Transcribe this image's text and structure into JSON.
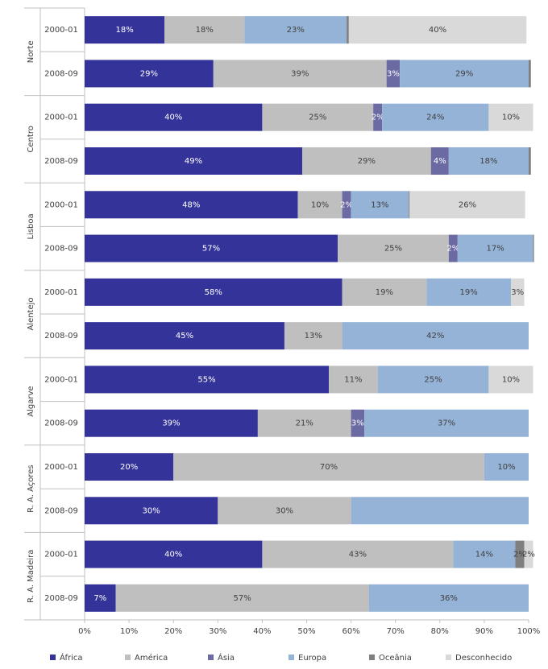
{
  "chart_data": {
    "type": "stacked-bar-horizontal",
    "groups": [
      "Norte",
      "Centro",
      "Lisboa",
      "Alentejo",
      "Algarve",
      "R. A. Açores",
      "R. A. Madeira"
    ],
    "categories": [
      "2000-01",
      "2008-09",
      "2000-01",
      "2008-09",
      "2000-01",
      "2008-09",
      "2000-01",
      "2008-09",
      "2000-01",
      "2008-09",
      "2000-01",
      "2008-09",
      "2000-01",
      "2008-09"
    ],
    "series": [
      {
        "name": "África",
        "color": "#33339a",
        "label_color": "#ffffff",
        "values": [
          18,
          29,
          40,
          49,
          48,
          57,
          58,
          45,
          55,
          39,
          20,
          30,
          40,
          7
        ],
        "value_labels": [
          "18%",
          "29%",
          "40%",
          "49%",
          "48%",
          "57%",
          "58%",
          "45%",
          "55%",
          "39%",
          "20%",
          "30%",
          "40%",
          "7%"
        ]
      },
      {
        "name": "América",
        "color": "#bfbfbf",
        "label_color": "#404040",
        "values": [
          18,
          39,
          25,
          29,
          10,
          25,
          19,
          13,
          11,
          21,
          70,
          30,
          43,
          57
        ],
        "value_labels": [
          "18%",
          "39%",
          "25%",
          "29%",
          "10%",
          "25%",
          "19%",
          "13%",
          "11%",
          "21%",
          "70%",
          "30%",
          "43%",
          "57%"
        ]
      },
      {
        "name": "Ásia",
        "color": "#6b6aa3",
        "label_color": "#ffffff",
        "values": [
          0,
          3,
          2,
          4,
          2,
          2,
          0,
          0,
          0,
          3,
          0,
          0,
          0,
          0
        ],
        "value_labels": [
          null,
          "3%",
          "2%",
          "4%",
          "2%",
          "2%",
          null,
          null,
          null,
          "3%",
          null,
          null,
          null,
          null
        ]
      },
      {
        "name": "Europa",
        "color": "#95b3d7",
        "label_color": "#404040",
        "values": [
          23,
          29,
          24,
          18,
          13,
          17,
          19,
          42,
          25,
          37,
          10,
          40,
          14,
          36
        ],
        "value_labels": [
          "23%",
          "29%",
          "24%",
          "18%",
          "13%",
          "17%",
          "19%",
          "42%",
          "25%",
          "37%",
          "10%",
          null,
          "14%",
          "36%"
        ]
      },
      {
        "name": "Oceânia",
        "color": "#7f7f7f",
        "label_color": "#404040",
        "values": [
          0.5,
          0.5,
          0,
          0.5,
          0.2,
          0.2,
          0,
          0,
          0,
          0,
          0,
          0,
          2,
          0
        ],
        "value_labels": [
          null,
          null,
          null,
          null,
          null,
          null,
          null,
          null,
          null,
          null,
          null,
          null,
          "2%",
          null
        ]
      },
      {
        "name": "Desconhecido",
        "color": "#d9d9d9",
        "label_color": "#404040",
        "values": [
          40,
          0,
          10,
          0,
          26,
          0,
          3,
          0,
          10,
          0,
          0,
          0,
          2,
          0
        ],
        "value_labels": [
          "40%",
          null,
          "10%",
          null,
          "26%",
          null,
          "3%",
          null,
          "10%",
          null,
          null,
          null,
          "2%",
          null
        ]
      }
    ],
    "xlim": [
      0,
      100
    ],
    "xticks": [
      {
        "value": 0,
        "label": "0%"
      },
      {
        "value": 10,
        "label": "10%"
      },
      {
        "value": 20,
        "label": "20%"
      },
      {
        "value": 30,
        "label": "30%"
      },
      {
        "value": 40,
        "label": "40%"
      },
      {
        "value": 50,
        "label": "50%"
      },
      {
        "value": 60,
        "label": "60%"
      },
      {
        "value": 70,
        "label": "70%"
      },
      {
        "value": 80,
        "label": "80%"
      },
      {
        "value": 90,
        "label": "90%"
      },
      {
        "value": 100,
        "label": "100%"
      }
    ],
    "legend": "bottom"
  }
}
